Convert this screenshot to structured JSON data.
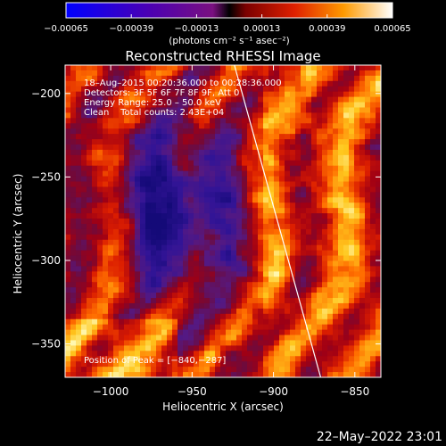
{
  "chart_data": {
    "type": "heatmap",
    "title": "Reconstructed RHESSI Image",
    "xlabel": "Heliocentric X (arcsec)",
    "ylabel": "Heliocentric Y (arcsec)",
    "xlim": [
      -1028,
      -834
    ],
    "ylim": [
      -370,
      -183
    ],
    "x_ticks": [
      {
        "value": -1000,
        "label": "−1000"
      },
      {
        "value": -950,
        "label": "−950"
      },
      {
        "value": -900,
        "label": "−900"
      },
      {
        "value": -850,
        "label": "−850"
      }
    ],
    "y_ticks": [
      {
        "value": -200,
        "label": "−200"
      },
      {
        "value": -250,
        "label": "−250"
      },
      {
        "value": -300,
        "label": "−300"
      },
      {
        "value": -350,
        "label": "−350"
      }
    ],
    "colorbar": {
      "range": [
        -0.00065,
        0.00065
      ],
      "ticks": [
        {
          "value": -0.00065,
          "label": "−0.00065"
        },
        {
          "value": -0.00039,
          "label": "−0.00039"
        },
        {
          "value": -0.00013,
          "label": "−0.00013"
        },
        {
          "value": 0.00013,
          "label": "0.00013"
        },
        {
          "value": 0.00039,
          "label": "0.00039"
        },
        {
          "value": 0.00065,
          "label": "0.00065"
        }
      ],
      "units_label": "(photons cm⁻² s⁻¹ asec⁻²)"
    },
    "annotations": [
      "18–Aug–2015 00:20:36.000 to 00:28:36.000",
      "Detectors: 3F 5F 6F 7F 8F 9F, Att 0",
      "Energy Range: 25.0 – 50.0 keV",
      "Clean    Total counts: 2.43E+04"
    ],
    "peak_label": "Position of Peak = [−840,−287]",
    "peak": [
      -840,
      -287
    ],
    "limb_line": [
      [
        -924,
        -183
      ],
      [
        -871,
        -370
      ]
    ],
    "colors": {
      "background": "#000000",
      "text": "#ffffff",
      "limb": "#ffffff"
    },
    "grid": false
  },
  "footer": {
    "timestamp": "22–May–2022 23:01"
  }
}
